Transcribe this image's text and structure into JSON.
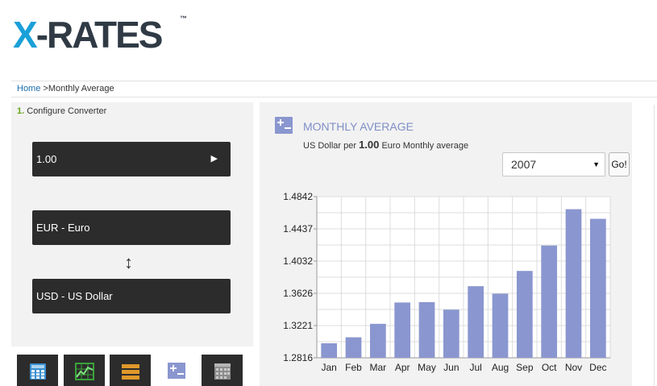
{
  "brand": {
    "logo_x": "X",
    "logo_rest": "-RATES",
    "tm": "™"
  },
  "breadcrumb": {
    "home": "Home",
    "separator": " >",
    "current": "Monthly Average"
  },
  "converter": {
    "step_number": "1.",
    "step_label": " Configure Converter",
    "amount": "1.00",
    "from_currency": "EUR - Euro",
    "to_currency": "USD - US Dollar"
  },
  "tabs": [
    {
      "name": "calculator"
    },
    {
      "name": "graph"
    },
    {
      "name": "table"
    },
    {
      "name": "monthly-average",
      "active": true
    },
    {
      "name": "historic-rates"
    }
  ],
  "panel": {
    "title": "MONTHLY AVERAGE",
    "subtitle_pre": "US Dollar per ",
    "subtitle_amount": "1.00",
    "subtitle_post": " Euro Monthly average",
    "year": "2007",
    "go_label": "Go!"
  },
  "colors": {
    "bar": "#8a96cf",
    "accent": "#7f8fc7",
    "logo_blue": "#1aa0d8"
  },
  "chart_data": {
    "type": "bar",
    "categories": [
      "Jan",
      "Feb",
      "Mar",
      "Apr",
      "May",
      "Jun",
      "Jul",
      "Aug",
      "Sep",
      "Oct",
      "Nov",
      "Dec"
    ],
    "values": [
      1.2999,
      1.3074,
      1.3243,
      1.3511,
      1.3516,
      1.3421,
      1.3716,
      1.3622,
      1.3908,
      1.4227,
      1.4684,
      1.4563
    ],
    "yticks": [
      "1.2816",
      "1.3221",
      "1.3626",
      "1.4032",
      "1.4437",
      "1.4842"
    ],
    "ylim": [
      1.2816,
      1.4842
    ],
    "grid": true
  }
}
